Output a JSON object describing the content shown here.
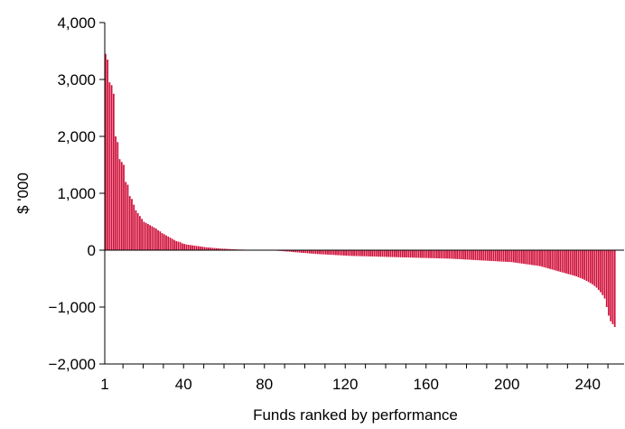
{
  "chart_data": {
    "type": "bar",
    "xlabel": "Funds ranked by performance",
    "ylabel": "$ '000",
    "ylim": [
      -2000,
      4000
    ],
    "yticks": [
      -2000,
      -1000,
      0,
      1000,
      2000,
      3000,
      4000
    ],
    "ytick_labels": [
      "−2,000",
      "−1,000",
      "0",
      "1,000",
      "2,000",
      "3,000",
      "4,000"
    ],
    "xlim": [
      1,
      257
    ],
    "xticks": [
      1,
      40,
      80,
      120,
      160,
      200,
      240
    ],
    "xtick_labels": [
      "1",
      "40",
      "80",
      "120",
      "160",
      "200",
      "240"
    ],
    "bar_color": "#d0103a",
    "grid": false,
    "series": [
      {
        "x_start": 1,
        "values": [
          3450,
          3350,
          2950,
          2900,
          2750,
          2000,
          1900,
          1600,
          1550,
          1500,
          1200,
          1150,
          950,
          900,
          800,
          700,
          650,
          600,
          550,
          500,
          480,
          460,
          440,
          420,
          400,
          380,
          350,
          330,
          300,
          280,
          260,
          240,
          220,
          200,
          180,
          160,
          150,
          140,
          120,
          110,
          100,
          95,
          90,
          85,
          80,
          75,
          70,
          65,
          60,
          55,
          50,
          47,
          44,
          41,
          38,
          35,
          32,
          29,
          27,
          25,
          23,
          21,
          19,
          17,
          15,
          13,
          12,
          11,
          10,
          9,
          8,
          7,
          6,
          5,
          4,
          3,
          2,
          1,
          0,
          0,
          -1,
          -2,
          -3,
          -5,
          -7,
          -10,
          -12,
          -15,
          -18,
          -21,
          -24,
          -27,
          -30,
          -33,
          -36,
          -39,
          -42,
          -45,
          -48,
          -51,
          -54,
          -57,
          -60,
          -63,
          -66,
          -68,
          -70,
          -72,
          -74,
          -76,
          -78,
          -80,
          -82,
          -84,
          -86,
          -88,
          -90,
          -92,
          -94,
          -96,
          -98,
          -100,
          -101,
          -102,
          -103,
          -104,
          -105,
          -106,
          -107,
          -108,
          -109,
          -110,
          -111,
          -112,
          -113,
          -114,
          -115,
          -116,
          -117,
          -118,
          -119,
          -120,
          -121,
          -122,
          -123,
          -124,
          -125,
          -126,
          -127,
          -128,
          -129,
          -130,
          -131,
          -132,
          -133,
          -134,
          -135,
          -136,
          -137,
          -138,
          -139,
          -140,
          -141,
          -142,
          -143,
          -144,
          -145,
          -146,
          -147,
          -148,
          -149,
          -150,
          -152,
          -154,
          -156,
          -158,
          -160,
          -162,
          -164,
          -166,
          -168,
          -170,
          -172,
          -174,
          -176,
          -178,
          -180,
          -182,
          -184,
          -186,
          -188,
          -190,
          -192,
          -194,
          -196,
          -198,
          -200,
          -202,
          -204,
          -206,
          -208,
          -210,
          -215,
          -220,
          -225,
          -230,
          -235,
          -240,
          -245,
          -250,
          -255,
          -260,
          -265,
          -270,
          -275,
          -280,
          -290,
          -300,
          -310,
          -320,
          -330,
          -340,
          -350,
          -360,
          -370,
          -380,
          -390,
          -400,
          -410,
          -420,
          -430,
          -440,
          -450,
          -460,
          -475,
          -490,
          -505,
          -520,
          -540,
          -560,
          -580,
          -600,
          -630,
          -660,
          -700,
          -740,
          -790,
          -850,
          -1000,
          -1150,
          -1250,
          -1300,
          -1350
        ]
      }
    ]
  }
}
